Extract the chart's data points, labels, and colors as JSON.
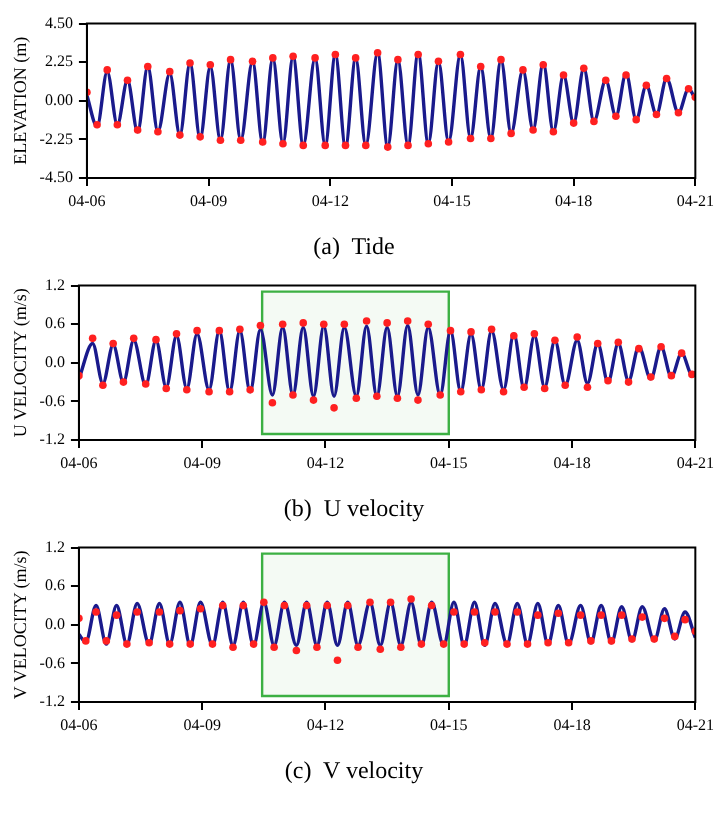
{
  "chart_data": [
    {
      "type": "line",
      "title": "(a)  Tide",
      "ylabel": "ELEVATION (m)",
      "x": [
        "--04-06T00:00",
        "--04-06T06:00",
        "--04-06T12:00",
        "--04-06T18:00",
        "--04-07T00:00",
        "--04-07T06:00",
        "--04-07T12:00",
        "--04-07T18:00",
        "--04-08T01:00",
        "--04-08T07:00",
        "--04-08T13:00",
        "--04-08T19:00",
        "--04-09T01:00",
        "--04-09T07:00",
        "--04-09T13:00",
        "--04-09T19:00",
        "--04-10T02:00",
        "--04-10T08:00",
        "--04-10T14:00",
        "--04-10T20:00",
        "--04-11T02:00",
        "--04-11T08:00",
        "--04-11T15:00",
        "--04-11T21:00",
        "--04-12T03:00",
        "--04-12T09:00",
        "--04-12T15:00",
        "--04-12T21:00",
        "--04-13T04:00",
        "--04-13T10:00",
        "--04-13T16:00",
        "--04-13T22:00",
        "--04-14T04:00",
        "--04-14T10:00",
        "--04-14T16:00",
        "--04-14T22:00",
        "--04-15T05:00",
        "--04-15T11:00",
        "--04-15T17:00",
        "--04-15T23:00",
        "--04-16T05:00",
        "--04-16T11:00",
        "--04-16T18:00",
        "--04-17T00:00",
        "--04-17T06:00",
        "--04-17T12:00",
        "--04-17T18:00",
        "--04-18T00:00",
        "--04-18T06:00",
        "--04-18T12:00",
        "--04-18T19:00",
        "--04-19T01:00",
        "--04-19T07:00",
        "--04-19T13:00",
        "--04-19T19:00",
        "--04-20T01:00",
        "--04-20T07:00",
        "--04-20T14:00",
        "--04-20T20:00",
        "--04-21T00:00"
      ],
      "series": [
        {
          "type": "scatter",
          "marker": "circle",
          "color": "#ff2020",
          "values": [
            0.5,
            -1.4,
            1.8,
            -1.4,
            1.2,
            -1.7,
            2.0,
            -1.8,
            1.7,
            -2.0,
            2.2,
            -2.1,
            2.1,
            -2.3,
            2.4,
            -2.3,
            2.3,
            -2.4,
            2.5,
            -2.5,
            2.6,
            -2.6,
            2.5,
            -2.6,
            2.7,
            -2.6,
            2.5,
            -2.6,
            2.8,
            -2.7,
            2.4,
            -2.6,
            2.7,
            -2.5,
            2.3,
            -2.4,
            2.7,
            -2.2,
            2.0,
            -2.2,
            2.4,
            -1.9,
            1.8,
            -1.7,
            2.1,
            -1.8,
            1.5,
            -1.3,
            1.9,
            -1.2,
            1.2,
            -0.9,
            1.5,
            -1.1,
            0.9,
            -0.8,
            1.3,
            -0.7,
            0.7,
            0.2
          ]
        },
        {
          "type": "line",
          "marker": "none",
          "color": "#1a1a8c",
          "values": [
            0.3,
            -1.5,
            1.7,
            -1.4,
            1.2,
            -1.8,
            2.0,
            -1.8,
            1.6,
            -2.0,
            2.2,
            -2.2,
            2.0,
            -2.3,
            2.4,
            -2.3,
            2.3,
            -2.5,
            2.5,
            -2.5,
            2.6,
            -2.6,
            2.5,
            -2.6,
            2.7,
            -2.7,
            2.5,
            -2.6,
            2.8,
            -2.7,
            2.4,
            -2.6,
            2.8,
            -2.5,
            2.3,
            -2.4,
            2.7,
            -2.2,
            2.0,
            -2.2,
            2.4,
            -1.9,
            1.8,
            -1.7,
            2.2,
            -1.8,
            1.5,
            -1.3,
            1.9,
            -1.2,
            1.2,
            -0.9,
            1.6,
            -1.1,
            0.9,
            -0.8,
            1.3,
            -0.7,
            0.7,
            0.1
          ]
        }
      ],
      "xlim": [
        "--04-06",
        "--04-21"
      ],
      "xticks": [
        {
          "value": "--04-06",
          "label": "04-06"
        },
        {
          "value": "--04-09",
          "label": "04-09"
        },
        {
          "value": "--04-12",
          "label": "04-12"
        },
        {
          "value": "--04-15",
          "label": "04-15"
        },
        {
          "value": "--04-18",
          "label": "04-18"
        },
        {
          "value": "--04-21",
          "label": "04-21"
        }
      ],
      "ylim": [
        -4.5,
        4.5
      ],
      "yticks": [
        {
          "value": -4.5,
          "label": "-4.50"
        },
        {
          "value": -2.25,
          "label": "-2.25"
        },
        {
          "value": 0,
          "label": "0.00"
        },
        {
          "value": 2.25,
          "label": "2.25"
        },
        {
          "value": 4.5,
          "label": "4.50"
        }
      ],
      "grid": false,
      "legend": false
    },
    {
      "type": "line",
      "title": "(b)  U velocity",
      "ylabel": "U VELOCITY (m/s)",
      "x": [
        "--04-06T00:00",
        "--04-06T08:00",
        "--04-06T14:00",
        "--04-06T20:00",
        "--04-07T02:00",
        "--04-07T08:00",
        "--04-07T15:00",
        "--04-07T21:00",
        "--04-08T03:00",
        "--04-08T09:00",
        "--04-08T15:00",
        "--04-08T21:00",
        "--04-09T04:00",
        "--04-09T10:00",
        "--04-09T16:00",
        "--04-09T22:00",
        "--04-10T04:00",
        "--04-10T10:00",
        "--04-10T17:00",
        "--04-10T23:00",
        "--04-11T05:00",
        "--04-11T11:00",
        "--04-11T17:00",
        "--04-11T23:00",
        "--04-12T05:00",
        "--04-12T11:00",
        "--04-12T18:00",
        "--04-13T00:00",
        "--04-13T06:00",
        "--04-13T12:00",
        "--04-13T18:00",
        "--04-14T00:00",
        "--04-14T06:00",
        "--04-14T12:00",
        "--04-14T19:00",
        "--04-15T01:00",
        "--04-15T07:00",
        "--04-15T13:00",
        "--04-15T19:00",
        "--04-16T01:00",
        "--04-16T08:00",
        "--04-16T14:00",
        "--04-16T20:00",
        "--04-17T02:00",
        "--04-17T08:00",
        "--04-17T14:00",
        "--04-17T20:00",
        "--04-18T03:00",
        "--04-18T09:00",
        "--04-18T15:00",
        "--04-18T21:00",
        "--04-19T03:00",
        "--04-19T09:00",
        "--04-19T15:00",
        "--04-19T22:00",
        "--04-20T04:00",
        "--04-20T10:00",
        "--04-20T16:00",
        "--04-20T22:00",
        "--04-21T00:00"
      ],
      "series": [
        {
          "type": "scatter",
          "marker": "circle",
          "color": "#ff2020",
          "values": [
            -0.2,
            0.38,
            -0.35,
            0.3,
            -0.3,
            0.38,
            -0.33,
            0.36,
            -0.4,
            0.45,
            -0.42,
            0.5,
            -0.45,
            0.5,
            -0.45,
            0.52,
            -0.42,
            0.58,
            -0.62,
            0.6,
            -0.5,
            0.62,
            -0.58,
            0.6,
            -0.7,
            0.6,
            -0.55,
            0.65,
            -0.52,
            0.62,
            -0.55,
            0.65,
            -0.58,
            0.6,
            -0.5,
            0.5,
            -0.45,
            0.48,
            -0.42,
            0.52,
            -0.45,
            0.42,
            -0.38,
            0.45,
            -0.4,
            0.35,
            -0.35,
            0.4,
            -0.38,
            0.3,
            -0.28,
            0.32,
            -0.3,
            0.22,
            -0.22,
            0.25,
            -0.2,
            0.15,
            -0.18,
            null
          ]
        },
        {
          "type": "line",
          "marker": "none",
          "color": "#1a1a8c",
          "values": [
            -0.25,
            0.3,
            -0.32,
            0.28,
            -0.3,
            0.35,
            -0.35,
            0.35,
            -0.38,
            0.42,
            -0.4,
            0.45,
            -0.42,
            0.5,
            -0.45,
            0.5,
            -0.45,
            0.52,
            -0.5,
            0.55,
            -0.5,
            0.55,
            -0.52,
            0.57,
            -0.52,
            0.55,
            -0.52,
            0.57,
            -0.52,
            0.55,
            -0.52,
            0.58,
            -0.5,
            0.55,
            -0.5,
            0.5,
            -0.45,
            0.45,
            -0.42,
            0.5,
            -0.42,
            0.45,
            -0.4,
            0.42,
            -0.38,
            0.35,
            -0.35,
            0.35,
            -0.32,
            0.3,
            -0.3,
            0.3,
            -0.28,
            0.25,
            -0.25,
            0.25,
            -0.22,
            0.15,
            -0.18,
            -0.15
          ]
        }
      ],
      "xlim": [
        "--04-06",
        "--04-21"
      ],
      "xticks": [
        {
          "value": "--04-06",
          "label": "04-06"
        },
        {
          "value": "--04-09",
          "label": "04-09"
        },
        {
          "value": "--04-12",
          "label": "04-12"
        },
        {
          "value": "--04-15",
          "label": "04-15"
        },
        {
          "value": "--04-18",
          "label": "04-18"
        },
        {
          "value": "--04-21",
          "label": "04-21"
        }
      ],
      "ylim": [
        -1.2,
        1.2
      ],
      "yticks": [
        {
          "value": -1.2,
          "label": "-1.2"
        },
        {
          "value": -0.6,
          "label": "-0.6"
        },
        {
          "value": 0,
          "label": "0.0"
        },
        {
          "value": 0.6,
          "label": "0.6"
        },
        {
          "value": 1.2,
          "label": "1.2"
        }
      ],
      "bands": [
        {
          "axis": "x",
          "from": "--04-10T11:00",
          "to": "--04-15",
          "color": "#3cb043"
        }
      ],
      "grid": false,
      "legend": false
    },
    {
      "type": "line",
      "title": "(c)  V velocity",
      "ylabel": "V VELOCITY (m/s)",
      "x": [
        "--04-06T00:00",
        "--04-06T04:00",
        "--04-06T10:00",
        "--04-06T16:00",
        "--04-06T22:00",
        "--04-07T04:00",
        "--04-07T10:00",
        "--04-07T17:00",
        "--04-07T23:00",
        "--04-08T05:00",
        "--04-08T11:00",
        "--04-08T17:00",
        "--04-08T23:00",
        "--04-09T06:00",
        "--04-09T12:00",
        "--04-09T18:00",
        "--04-10T00:00",
        "--04-10T06:00",
        "--04-10T12:00",
        "--04-10T18:00",
        "--04-11T00:00",
        "--04-11T07:00",
        "--04-11T13:00",
        "--04-11T19:00",
        "--04-12T01:00",
        "--04-12T07:00",
        "--04-12T13:00",
        "--04-12T19:00",
        "--04-13T02:00",
        "--04-13T08:00",
        "--04-13T14:00",
        "--04-13T20:00",
        "--04-14T02:00",
        "--04-14T08:00",
        "--04-14T14:00",
        "--04-14T21:00",
        "--04-15T03:00",
        "--04-15T09:00",
        "--04-15T15:00",
        "--04-15T21:00",
        "--04-16T03:00",
        "--04-16T10:00",
        "--04-16T16:00",
        "--04-16T22:00",
        "--04-17T04:00",
        "--04-17T10:00",
        "--04-17T16:00",
        "--04-17T22:00",
        "--04-18T05:00",
        "--04-18T11:00",
        "--04-18T17:00",
        "--04-18T23:00",
        "--04-19T05:00",
        "--04-19T11:00",
        "--04-19T17:00",
        "--04-20T00:00",
        "--04-20T06:00",
        "--04-20T12:00",
        "--04-20T18:00",
        "--04-21T00:00"
      ],
      "series": [
        {
          "type": "scatter",
          "marker": "circle",
          "color": "#ff2020",
          "values": [
            0.1,
            -0.25,
            0.2,
            -0.25,
            0.15,
            -0.3,
            0.2,
            -0.28,
            0.2,
            -0.3,
            0.22,
            -0.3,
            0.25,
            -0.3,
            0.3,
            -0.35,
            0.3,
            -0.3,
            0.35,
            -0.35,
            0.3,
            -0.4,
            0.3,
            -0.35,
            0.3,
            -0.55,
            0.3,
            -0.35,
            0.35,
            -0.38,
            0.35,
            -0.35,
            0.4,
            -0.3,
            0.3,
            -0.3,
            0.2,
            -0.3,
            0.2,
            -0.28,
            0.2,
            -0.3,
            0.2,
            -0.3,
            0.15,
            -0.28,
            0.18,
            -0.28,
            0.15,
            -0.25,
            0.15,
            -0.25,
            0.15,
            -0.22,
            0.12,
            -0.22,
            0.1,
            -0.18,
            0.08,
            -0.1
          ]
        },
        {
          "type": "line",
          "marker": "none",
          "color": "#1a1a8c",
          "values": [
            -0.15,
            -0.27,
            0.3,
            -0.3,
            0.3,
            -0.3,
            0.33,
            -0.3,
            0.33,
            -0.3,
            0.35,
            -0.32,
            0.35,
            -0.32,
            0.35,
            -0.32,
            0.35,
            -0.32,
            0.35,
            -0.32,
            0.35,
            -0.32,
            0.35,
            -0.32,
            0.35,
            -0.32,
            0.35,
            -0.32,
            0.35,
            -0.32,
            0.35,
            -0.32,
            0.35,
            -0.32,
            0.35,
            -0.32,
            0.35,
            -0.32,
            0.35,
            -0.32,
            0.33,
            -0.3,
            0.33,
            -0.3,
            0.33,
            -0.3,
            0.3,
            -0.3,
            0.3,
            -0.28,
            0.3,
            -0.28,
            0.28,
            -0.25,
            0.28,
            -0.25,
            0.25,
            -0.22,
            0.2,
            -0.2
          ]
        }
      ],
      "xlim": [
        "--04-06",
        "--04-21"
      ],
      "xticks": [
        {
          "value": "--04-06",
          "label": "04-06"
        },
        {
          "value": "--04-09",
          "label": "04-09"
        },
        {
          "value": "--04-12",
          "label": "04-12"
        },
        {
          "value": "--04-15",
          "label": "04-15"
        },
        {
          "value": "--04-18",
          "label": "04-18"
        },
        {
          "value": "--04-21",
          "label": "04-21"
        }
      ],
      "ylim": [
        -1.2,
        1.2
      ],
      "yticks": [
        {
          "value": -1.2,
          "label": "-1.2"
        },
        {
          "value": -0.6,
          "label": "-0.6"
        },
        {
          "value": 0,
          "label": "0.0"
        },
        {
          "value": 0.6,
          "label": "0.6"
        },
        {
          "value": 1.2,
          "label": "1.2"
        }
      ],
      "bands": [
        {
          "axis": "x",
          "from": "--04-10T11:00",
          "to": "--04-15",
          "color": "#3cb043"
        }
      ],
      "grid": false,
      "legend": false
    }
  ]
}
